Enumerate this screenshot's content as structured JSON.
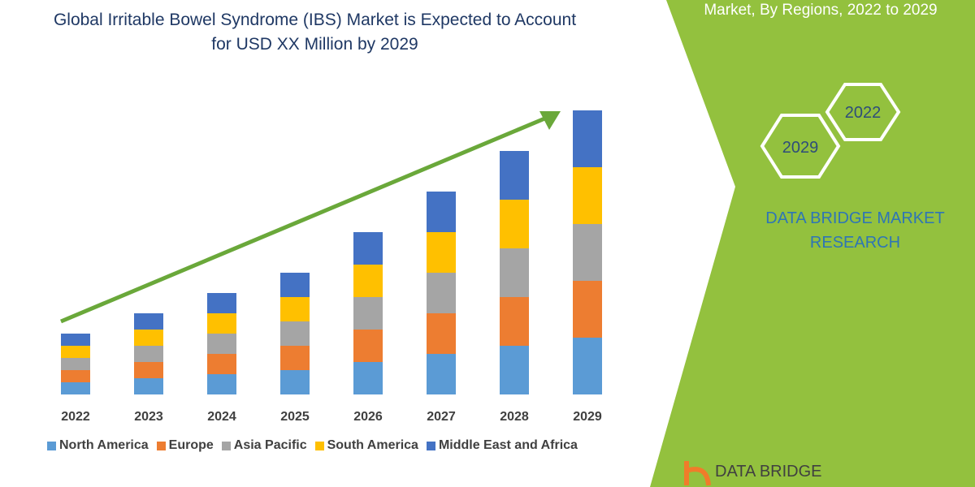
{
  "chart_data": {
    "type": "bar",
    "stacked": true,
    "title": "Global Irritable Bowel Syndrome (IBS) Market is Expected to Account for USD XX Million by 2029",
    "categories": [
      "2022",
      "2023",
      "2024",
      "2025",
      "2026",
      "2027",
      "2028",
      "2029"
    ],
    "series": [
      {
        "name": "North America",
        "color": "#5b9bd5",
        "values": [
          15,
          20,
          25,
          30,
          40,
          50,
          60,
          70
        ]
      },
      {
        "name": "Europe",
        "color": "#ed7d31",
        "values": [
          15,
          20,
          25,
          30,
          40,
          50,
          60,
          70
        ]
      },
      {
        "name": "Asia Pacific",
        "color": "#a5a5a5",
        "values": [
          15,
          20,
          25,
          30,
          40,
          50,
          60,
          70
        ]
      },
      {
        "name": "South America",
        "color": "#ffc000",
        "values": [
          15,
          20,
          25,
          30,
          40,
          50,
          60,
          70
        ]
      },
      {
        "name": "Middle East and Africa",
        "color": "#4472c4",
        "values": [
          15,
          20,
          25,
          30,
          40,
          50,
          60,
          70
        ]
      }
    ],
    "ylim": [
      0,
      360
    ]
  },
  "panel": {
    "heading": "Market, By Regions, 2022 to 2029",
    "badges": [
      "2022",
      "2029"
    ],
    "brand": "DATA BRIDGE MARKET RESEARCH",
    "logo": "DATA BRIDGE"
  }
}
